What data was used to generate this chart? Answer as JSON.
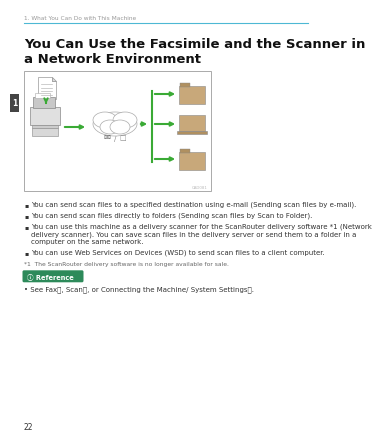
{
  "bg_color": "#ffffff",
  "header_text": "1. What You Can Do with This Machine",
  "header_color": "#4db8d4",
  "title_line1": "You Can Use the Facsimile and the Scanner in",
  "title_line2": "a Network Environment",
  "title_fontsize": 9.5,
  "title_fontweight": "bold",
  "tab_color": "#444444",
  "tab_text": "1",
  "bullet_points": [
    "You can send scan files to a specified destination using e-mail (Sending scan files by e-mail).",
    "You can send scan files directly to folders (Sending scan files by Scan to Folder).",
    "You can use this machine as a delivery scanner for the ScanRouter delivery software *1 (Network\ndelivery scanner). You can save scan files in the delivery server or send them to a folder in a\ncomputer on the same network.",
    "You can use Web Services on Devices (WSD) to send scan files to a client computer."
  ],
  "footnote": "*1  The ScanRouter delivery software is no longer available for sale.",
  "reference_label": "Reference",
  "reference_bg": "#2d8a5a",
  "reference_bullet": "• See Faxⓓ, Scanⓓ, or Connecting the Machine/ System Settingsⓓ.",
  "page_number": "22",
  "arrow_color": "#3aaa35",
  "diagram_border": "#aaaaaa",
  "text_color": "#333333",
  "header_text_color": "#999999"
}
